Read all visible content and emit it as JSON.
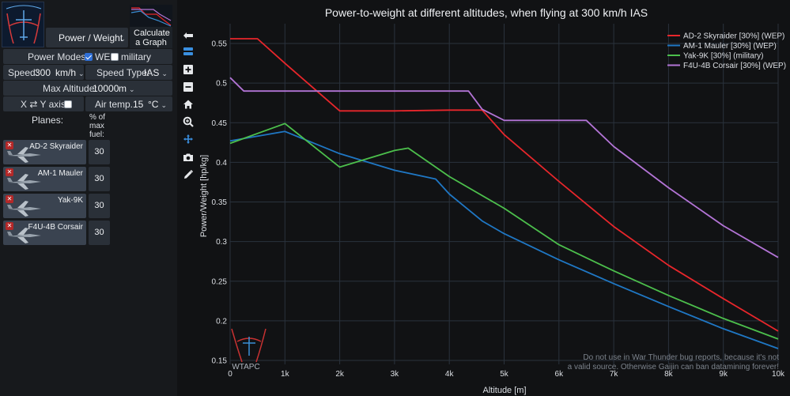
{
  "panel": {
    "graph_type_select": "Power / Weight",
    "calculate_button": "Calculate a Graph",
    "power_modes_label": "Power Modes:",
    "power_modes": [
      {
        "label": "WEP",
        "checked": true
      },
      {
        "label": "military",
        "checked": false
      }
    ],
    "speed_label": "Speed:",
    "speed_value": "300",
    "speed_unit": "km/h",
    "speed_type_label": "Speed Type:",
    "speed_type_value": "IAS",
    "max_alt_label": "Max Altitude:",
    "max_alt_value": "10000",
    "max_alt_unit": "m",
    "swap_axis_label": "X ⇄ Y axis",
    "swap_axis_checked": false,
    "air_temp_label": "Air temp.",
    "air_temp_value": "15",
    "air_temp_unit": "°C",
    "planes_label": "Planes:",
    "fuel_label_1": "% of",
    "fuel_label_2": "max",
    "fuel_label_3": "fuel:",
    "planes": [
      {
        "name": "AD-2 Skyraider",
        "fuel": "30"
      },
      {
        "name": "AM-1 Mauler",
        "fuel": "30"
      },
      {
        "name": "Yak-9K",
        "fuel": "30"
      },
      {
        "name": "F4U-4B Corsair",
        "fuel": "30"
      }
    ]
  },
  "toolbar": {
    "icons": [
      "collapse-icon",
      "layers-icon",
      "zoom-in-icon",
      "zoom-out-icon",
      "home-icon",
      "zoom-icon",
      "pan-icon",
      "camera-icon",
      "pencil-icon"
    ]
  },
  "chart_data": {
    "type": "line",
    "title": "Power-to-weight at different altitudes, when flying at 300 km/h IAS",
    "xlabel": "Altitude [m]",
    "ylabel": "Power/Weight [hp/kg]",
    "xlim": [
      0,
      10000
    ],
    "ylim": [
      0.145,
      0.575
    ],
    "x_ticks": [
      0,
      1000,
      2000,
      3000,
      4000,
      5000,
      6000,
      7000,
      8000,
      9000,
      10000
    ],
    "x_tick_labels": [
      "0",
      "1k",
      "2k",
      "3k",
      "4k",
      "5k",
      "6k",
      "7k",
      "8k",
      "9k",
      "10k"
    ],
    "y_ticks": [
      0.15,
      0.2,
      0.25,
      0.3,
      0.35,
      0.4,
      0.45,
      0.5,
      0.55
    ],
    "y_tick_labels": [
      "0.15",
      "0.2",
      "0.25",
      "0.3",
      "0.35",
      "0.4",
      "0.45",
      "0.5",
      "0.55"
    ],
    "grid": true,
    "legend_position": "top-right",
    "series": [
      {
        "name": "AD-2 Skyraider [30%] (WEP)",
        "color": "#e8262b",
        "x": [
          0,
          500,
          1000,
          2000,
          3000,
          4000,
          4600,
          5000,
          6000,
          7000,
          8000,
          9000,
          10000
        ],
        "y": [
          0.556,
          0.556,
          0.525,
          0.465,
          0.465,
          0.466,
          0.466,
          0.435,
          0.376,
          0.319,
          0.27,
          0.228,
          0.187
        ]
      },
      {
        "name": "AM-1 Mauler [30%] (WEP)",
        "color": "#1f77c4",
        "x": [
          0,
          1000,
          2000,
          3000,
          3750,
          4000,
          4600,
          5000,
          6000,
          7000,
          8000,
          9000,
          10000
        ],
        "y": [
          0.427,
          0.439,
          0.411,
          0.39,
          0.379,
          0.36,
          0.326,
          0.31,
          0.277,
          0.247,
          0.218,
          0.19,
          0.165
        ]
      },
      {
        "name": "Yak-9K [30%] (military)",
        "color": "#4cbf4c",
        "x": [
          0,
          1000,
          2000,
          3000,
          3250,
          4000,
          5000,
          6000,
          7000,
          8000,
          9000,
          10000
        ],
        "y": [
          0.424,
          0.449,
          0.394,
          0.415,
          0.418,
          0.382,
          0.342,
          0.296,
          0.263,
          0.232,
          0.203,
          0.177
        ]
      },
      {
        "name": "F4U-4B Corsair [30%] (WEP)",
        "color": "#b374d6",
        "x": [
          0,
          250,
          1000,
          2000,
          3000,
          4000,
          4350,
          4600,
          5000,
          6000,
          6500,
          7000,
          8000,
          9000,
          10000
        ],
        "y": [
          0.507,
          0.49,
          0.49,
          0.49,
          0.49,
          0.49,
          0.49,
          0.467,
          0.453,
          0.453,
          0.453,
          0.42,
          0.368,
          0.32,
          0.28
        ]
      }
    ],
    "watermark_line1": "Do not use in War Thunder bug reports, because it's not",
    "watermark_line2": "a valid source. Otherwise Gaijin can ban datamining forever!",
    "logo_text": "WTAPC"
  }
}
